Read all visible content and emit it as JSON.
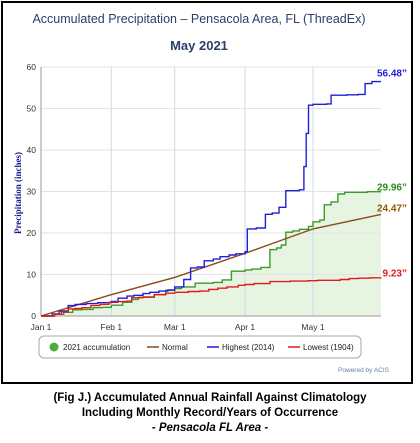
{
  "chart_data": {
    "type": "line",
    "title": "Accumulated Precipitation – Pensacola Area, FL (ThreadEx)",
    "subtitle": "May 2021",
    "ylabel": "Precipitation (inches)",
    "xlabel": "",
    "ylim": [
      0,
      60
    ],
    "yticks": [
      "0",
      "10",
      "20",
      "30",
      "40",
      "50",
      "60"
    ],
    "x_range_days": [
      0,
      150
    ],
    "xticks": [
      {
        "label": "Jan 1",
        "day": 0
      },
      {
        "label": "Feb 1",
        "day": 31
      },
      {
        "label": "Mar 1",
        "day": 59
      },
      {
        "label": "Apr 1",
        "day": 90
      },
      {
        "label": "May 1",
        "day": 120
      }
    ],
    "grid": true,
    "legend_position": "bottom",
    "credit": "Powered by ACIS",
    "series": [
      {
        "name": "2021 accumulation",
        "color": "#3a9a2a",
        "fill": "#e7f4e1",
        "end_label": "29.96”",
        "label_color": "#2e8b1e",
        "points": [
          [
            0,
            0
          ],
          [
            6,
            0.4
          ],
          [
            10,
            0.9
          ],
          [
            14,
            1.5
          ],
          [
            18,
            1.6
          ],
          [
            23,
            2.0
          ],
          [
            27,
            2.1
          ],
          [
            31,
            2.6
          ],
          [
            36,
            3.3
          ],
          [
            40,
            4.0
          ],
          [
            43,
            4.5
          ],
          [
            50,
            5.1
          ],
          [
            55,
            6.2
          ],
          [
            59,
            6.6
          ],
          [
            62,
            7.0
          ],
          [
            68,
            7.9
          ],
          [
            76,
            8.1
          ],
          [
            80,
            8.7
          ],
          [
            84,
            10.8
          ],
          [
            90,
            11.1
          ],
          [
            93,
            11.3
          ],
          [
            97,
            11.7
          ],
          [
            101,
            16.0
          ],
          [
            104,
            16.4
          ],
          [
            106,
            17.1
          ],
          [
            108,
            20.2
          ],
          [
            111,
            20.5
          ],
          [
            114,
            20.9
          ],
          [
            118,
            21.6
          ],
          [
            120,
            22.7
          ],
          [
            123,
            23.1
          ],
          [
            125,
            26.8
          ],
          [
            128,
            27.5
          ],
          [
            131,
            29.4
          ],
          [
            134,
            29.8
          ],
          [
            140,
            29.8
          ],
          [
            144,
            29.96
          ],
          [
            150,
            29.96
          ]
        ]
      },
      {
        "name": "Normal",
        "color": "#8b4a1e",
        "end_label": "24.47”",
        "label_color": "#8b5a00",
        "points": [
          [
            0,
            0
          ],
          [
            30,
            5.0
          ],
          [
            59,
            9.3
          ],
          [
            90,
            15.1
          ],
          [
            120,
            21.0
          ],
          [
            150,
            24.47
          ]
        ]
      },
      {
        "name": "Highest (2014)",
        "color": "#1f1fd8",
        "end_label": "56.48”",
        "label_color": "#1f1fd8",
        "points": [
          [
            0,
            0
          ],
          [
            5,
            0.5
          ],
          [
            8,
            1.2
          ],
          [
            12,
            2.5
          ],
          [
            15,
            2.8
          ],
          [
            20,
            3.0
          ],
          [
            25,
            3.2
          ],
          [
            31,
            3.5
          ],
          [
            34,
            4.3
          ],
          [
            38,
            4.8
          ],
          [
            41,
            5.0
          ],
          [
            45,
            5.4
          ],
          [
            48,
            5.7
          ],
          [
            52,
            6.0
          ],
          [
            56,
            6.3
          ],
          [
            59,
            7.0
          ],
          [
            63,
            8.8
          ],
          [
            66,
            11.6
          ],
          [
            69,
            11.8
          ],
          [
            72,
            13.3
          ],
          [
            76,
            13.7
          ],
          [
            79,
            14.3
          ],
          [
            83,
            14.7
          ],
          [
            86,
            15.0
          ],
          [
            90,
            15.5
          ],
          [
            91,
            21.0
          ],
          [
            95,
            21.2
          ],
          [
            99,
            24.5
          ],
          [
            102,
            24.8
          ],
          [
            105,
            26.2
          ],
          [
            108,
            30.2
          ],
          [
            114,
            30.4
          ],
          [
            116,
            36.0
          ],
          [
            117,
            44.0
          ],
          [
            118,
            50.8
          ],
          [
            120,
            51.0
          ],
          [
            126,
            51.1
          ],
          [
            128,
            53.2
          ],
          [
            135,
            53.3
          ],
          [
            140,
            53.4
          ],
          [
            143,
            56.0
          ],
          [
            146,
            56.48
          ],
          [
            150,
            56.48
          ]
        ]
      },
      {
        "name": "Lowest (1904)",
        "color": "#e01b1b",
        "end_label": "9.23”",
        "label_color": "#e01b1b",
        "points": [
          [
            0,
            0
          ],
          [
            6,
            0.4
          ],
          [
            9,
            1.0
          ],
          [
            12,
            1.7
          ],
          [
            15,
            1.8
          ],
          [
            18,
            2.0
          ],
          [
            22,
            2.5
          ],
          [
            26,
            2.8
          ],
          [
            30,
            3.3
          ],
          [
            34,
            3.5
          ],
          [
            38,
            3.6
          ],
          [
            40,
            4.4
          ],
          [
            45,
            4.6
          ],
          [
            50,
            5.2
          ],
          [
            55,
            5.5
          ],
          [
            59,
            5.7
          ],
          [
            65,
            5.9
          ],
          [
            70,
            6.0
          ],
          [
            74,
            6.4
          ],
          [
            78,
            6.7
          ],
          [
            82,
            7.0
          ],
          [
            87,
            7.4
          ],
          [
            90,
            7.6
          ],
          [
            94,
            7.8
          ],
          [
            101,
            8.3
          ],
          [
            110,
            8.4
          ],
          [
            118,
            8.5
          ],
          [
            122,
            8.6
          ],
          [
            128,
            8.6
          ],
          [
            132,
            8.8
          ],
          [
            136,
            9.0
          ],
          [
            140,
            9.1
          ],
          [
            145,
            9.2
          ],
          [
            150,
            9.23
          ]
        ]
      }
    ]
  },
  "caption": {
    "line1": "(Fig J.) Accumulated Annual Rainfall Against  Climatology",
    "line2": "Including Monthly Record/Years of Occurrence",
    "line3": "- Pensacola FL Area -"
  }
}
